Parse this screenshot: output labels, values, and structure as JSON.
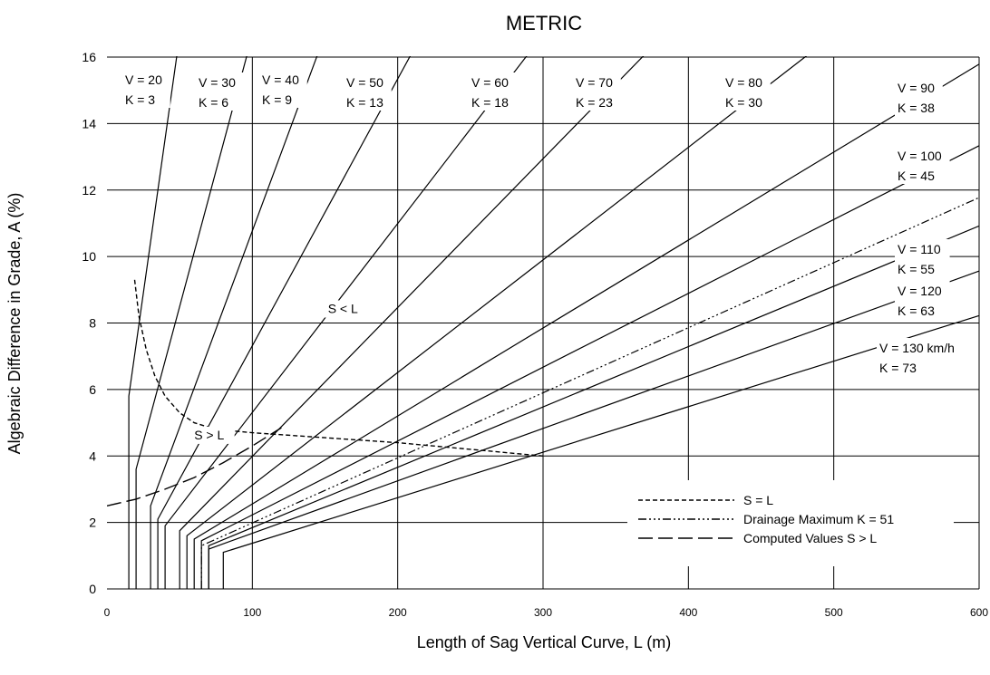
{
  "chart_data": {
    "type": "line",
    "title": "METRIC",
    "xlabel": "Length of Sag Vertical Curve, L (m)",
    "ylabel": "Algebraic Difference in Grade, A (%)",
    "xlim": [
      0,
      600
    ],
    "ylim": [
      0,
      16
    ],
    "xticks": [
      "0",
      "100",
      "200",
      "300",
      "400",
      "500",
      "600"
    ],
    "yticks": [
      "0",
      "2",
      "4",
      "6",
      "8",
      "10",
      "12",
      "14",
      "16"
    ],
    "grid": true,
    "series": [
      {
        "name": "V = 20 K = 3",
        "label1": "V = 20",
        "label2": "K = 3",
        "k": 3,
        "min_length": 15,
        "bend_a": 5.8
      },
      {
        "name": "V = 30 K = 6",
        "label1": "V = 30",
        "label2": "K = 6",
        "k": 6,
        "min_length": 20,
        "bend_a": 3.6
      },
      {
        "name": "V = 40 K = 9",
        "label1": "V = 40",
        "label2": "K = 9",
        "k": 9,
        "min_length": 30,
        "bend_a": 2.5
      },
      {
        "name": "V = 50 K = 13",
        "label1": "V = 50",
        "label2": "K = 13",
        "k": 13,
        "min_length": 35,
        "bend_a": 2.1
      },
      {
        "name": "V = 60 K = 18",
        "label1": "V = 60",
        "label2": "K = 18",
        "k": 18,
        "min_length": 40,
        "bend_a": 1.9
      },
      {
        "name": "V = 70 K = 23",
        "label1": "V = 70",
        "label2": "K = 23",
        "k": 23,
        "min_length": 50,
        "bend_a": 1.75
      },
      {
        "name": "V = 80 K = 30",
        "label1": "V = 80",
        "label2": "K = 30",
        "k": 30,
        "min_length": 55,
        "bend_a": 1.6
      },
      {
        "name": "V = 90 K = 38",
        "label1": "V = 90",
        "label2": "K = 38",
        "k": 38,
        "min_length": 60,
        "bend_a": 1.5
      },
      {
        "name": "V = 100 K = 45",
        "label1": "V = 100",
        "label2": "K = 45",
        "k": 45,
        "min_length": 65,
        "bend_a": 1.45
      },
      {
        "name": "V = 110 K = 55",
        "label1": "V = 110",
        "label2": "K = 55",
        "k": 55,
        "min_length": 70,
        "bend_a": 1.3
      },
      {
        "name": "V = 120 K = 63",
        "label1": "V = 120",
        "label2": "K = 63",
        "k": 63,
        "min_length": 70,
        "bend_a": 1.2
      },
      {
        "name": "V = 130 km/h K = 73",
        "label1": "V = 130 km/h",
        "label2": "K = 73",
        "k": 73,
        "min_length": 80,
        "bend_a": 1.1
      }
    ],
    "drainage": {
      "name": "Drainage Maximum K = 51",
      "k": 51,
      "min_length": 65,
      "bend_a": 1.3
    },
    "s_equals_l": {
      "name": "S = L",
      "points": [
        [
          19,
          9.3
        ],
        [
          22,
          8.2
        ],
        [
          27,
          7.2
        ],
        [
          33,
          6.4
        ],
        [
          40,
          5.8
        ],
        [
          50,
          5.3
        ],
        [
          60,
          5.0
        ],
        [
          75,
          4.8
        ],
        [
          100,
          4.7
        ],
        [
          150,
          4.55
        ],
        [
          200,
          4.4
        ],
        [
          250,
          4.2
        ],
        [
          300,
          4.0
        ]
      ]
    },
    "computed_values": {
      "name": "Computed Values S > L",
      "points": [
        [
          0,
          2.5
        ],
        [
          20,
          2.7
        ],
        [
          40,
          3.0
        ],
        [
          60,
          3.35
        ],
        [
          80,
          3.8
        ],
        [
          100,
          4.3
        ],
        [
          120,
          4.85
        ]
      ]
    },
    "annotations": [
      {
        "text": "S < L",
        "x": 152,
        "y": 8.3
      },
      {
        "text": "S > L",
        "x": 60,
        "y": 4.5
      }
    ],
    "legend": {
      "position": "bottom-right",
      "entries": [
        {
          "label": "S = L",
          "style": "dashed"
        },
        {
          "label": "Drainage Maximum K = 51",
          "style": "dash-dot-dot"
        },
        {
          "label": "Computed Values S > L",
          "style": "long-dash"
        }
      ]
    }
  }
}
